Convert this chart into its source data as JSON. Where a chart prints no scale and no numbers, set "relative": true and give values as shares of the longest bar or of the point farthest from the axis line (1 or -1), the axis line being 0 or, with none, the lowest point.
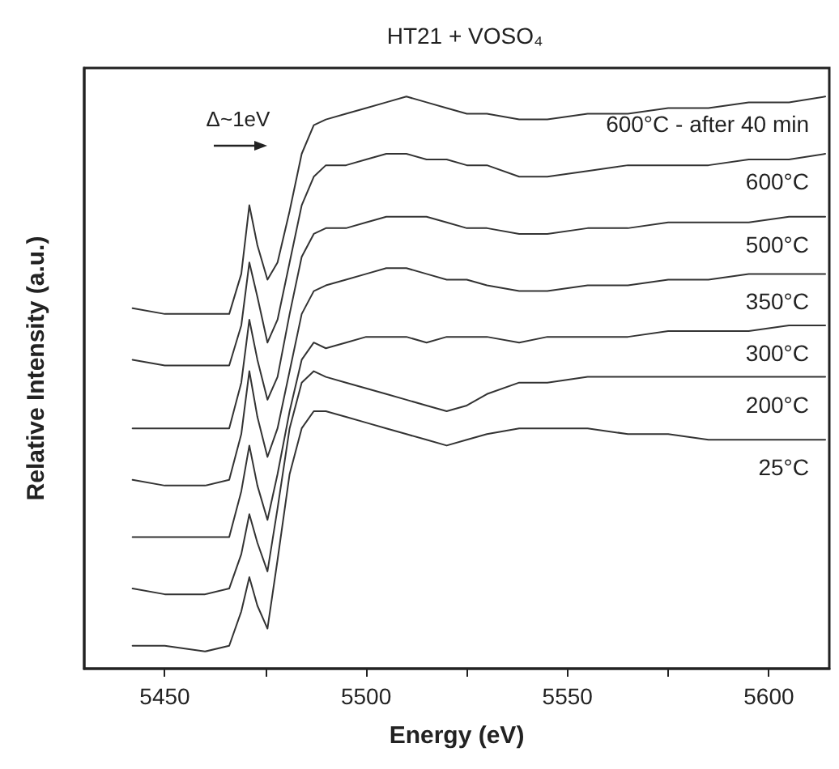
{
  "chart_data": {
    "type": "line",
    "title": "HT21 + VOSO₄",
    "xlabel": "Energy (eV)",
    "ylabel": "Relative Intensity (a.u.)",
    "relative": true,
    "tick_labels": "x",
    "xlim": [
      5430,
      5615
    ],
    "xticks": [
      5450,
      {
        "value": 5475,
        "label": null
      },
      5500,
      {
        "value": 5525,
        "label": null
      },
      5550,
      {
        "value": 5575,
        "label": null
      },
      5600
    ],
    "x": [
      5442,
      5450,
      5460,
      5466,
      5469,
      5471,
      5473,
      5475.5,
      5478,
      5481,
      5484,
      5487,
      5490,
      5495,
      5500,
      5505,
      5510,
      5515,
      5520,
      5525,
      5530,
      5538,
      5545,
      5555,
      5565,
      5575,
      5585,
      5595,
      5605,
      5614
    ],
    "annotations": [
      "Δ~1eV"
    ],
    "series": [
      {
        "name": "600°C - after 40 min",
        "color": "#333333",
        "values": [
          0.63,
          0.62,
          0.62,
          0.62,
          0.69,
          0.81,
          0.74,
          0.68,
          0.71,
          0.8,
          0.9,
          0.95,
          0.96,
          0.97,
          0.98,
          0.99,
          1,
          0.99,
          0.98,
          0.97,
          0.97,
          0.96,
          0.96,
          0.97,
          0.97,
          0.98,
          0.98,
          0.99,
          0.99,
          1
        ]
      },
      {
        "name": "600°C",
        "color": "#333333",
        "values": [
          0.54,
          0.53,
          0.53,
          0.53,
          0.6,
          0.71,
          0.65,
          0.57,
          0.61,
          0.71,
          0.81,
          0.86,
          0.88,
          0.88,
          0.89,
          0.9,
          0.9,
          0.89,
          0.89,
          0.88,
          0.88,
          0.86,
          0.86,
          0.87,
          0.88,
          0.88,
          0.88,
          0.89,
          0.89,
          0.9
        ]
      },
      {
        "name": "500°C",
        "color": "#333333",
        "values": [
          0.42,
          0.42,
          0.42,
          0.42,
          0.5,
          0.61,
          0.54,
          0.47,
          0.51,
          0.62,
          0.72,
          0.76,
          0.77,
          0.77,
          0.78,
          0.79,
          0.79,
          0.79,
          0.78,
          0.77,
          0.77,
          0.76,
          0.76,
          0.77,
          0.77,
          0.78,
          0.78,
          0.78,
          0.79,
          0.79
        ]
      },
      {
        "name": "350°C",
        "color": "#333333",
        "values": [
          0.33,
          0.32,
          0.32,
          0.33,
          0.41,
          0.52,
          0.44,
          0.37,
          0.42,
          0.52,
          0.62,
          0.66,
          0.67,
          0.68,
          0.69,
          0.7,
          0.7,
          0.69,
          0.68,
          0.68,
          0.67,
          0.66,
          0.66,
          0.67,
          0.67,
          0.68,
          0.68,
          0.69,
          0.69,
          0.69
        ]
      },
      {
        "name": "300°C",
        "color": "#333333",
        "values": [
          0.23,
          0.23,
          0.23,
          0.23,
          0.31,
          0.39,
          0.32,
          0.26,
          0.34,
          0.45,
          0.54,
          0.57,
          0.56,
          0.57,
          0.58,
          0.58,
          0.58,
          0.57,
          0.58,
          0.58,
          0.58,
          0.57,
          0.58,
          0.58,
          0.58,
          0.59,
          0.59,
          0.59,
          0.6,
          0.6
        ]
      },
      {
        "name": "200°C",
        "color": "#333333",
        "values": [
          0.14,
          0.13,
          0.13,
          0.14,
          0.2,
          0.27,
          0.22,
          0.17,
          0.28,
          0.42,
          0.5,
          0.52,
          0.51,
          0.5,
          0.49,
          0.48,
          0.47,
          0.46,
          0.45,
          0.46,
          0.48,
          0.5,
          0.5,
          0.51,
          0.51,
          0.51,
          0.51,
          0.51,
          0.51,
          0.51
        ]
      },
      {
        "name": "25°C",
        "color": "#333333",
        "values": [
          0.04,
          0.04,
          0.03,
          0.04,
          0.1,
          0.16,
          0.11,
          0.07,
          0.19,
          0.34,
          0.42,
          0.45,
          0.45,
          0.44,
          0.43,
          0.42,
          0.41,
          0.4,
          0.39,
          0.4,
          0.41,
          0.42,
          0.42,
          0.42,
          0.41,
          0.41,
          0.4,
          0.4,
          0.4,
          0.4
        ]
      }
    ]
  }
}
